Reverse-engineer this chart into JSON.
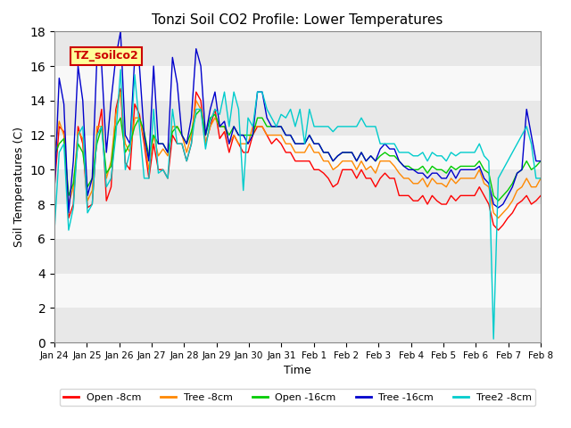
{
  "title": "Tonzi Soil CO2 Profile: Lower Temperatures",
  "xlabel": "Time",
  "ylabel": "Soil Temperatures (C)",
  "ylim": [
    0,
    18
  ],
  "yticks": [
    0,
    2,
    4,
    6,
    8,
    10,
    12,
    14,
    16,
    18
  ],
  "label_box_text": "TZ_soilco2",
  "label_box_color": "#ffff99",
  "label_box_border": "#cc0000",
  "label_box_text_color": "#cc0000",
  "series": [
    {
      "name": "Open -8cm",
      "color": "#ff0000"
    },
    {
      "name": "Tree -8cm",
      "color": "#ff8800"
    },
    {
      "name": "Open -16cm",
      "color": "#00cc00"
    },
    {
      "name": "Tree -16cm",
      "color": "#0000cc"
    },
    {
      "name": "Tree2 -8cm",
      "color": "#00cccc"
    }
  ],
  "x_tick_labels": [
    "Jan 24",
    "Jan 25",
    "Jan 26",
    "Jan 27",
    "Jan 28",
    "Jan 29",
    "Jan 30",
    "Jan 31",
    "Feb 1",
    "Feb 2",
    "Feb 3",
    "Feb 4",
    "Feb 5",
    "Feb 6",
    "Feb 7",
    "Feb 8"
  ],
  "band_colors": [
    "#e8e8e8",
    "#f8f8f8"
  ],
  "band_edges": [
    0,
    2,
    4,
    6,
    8,
    10,
    12,
    14,
    16,
    18
  ],
  "open8": [
    9.0,
    12.5,
    12.2,
    7.2,
    8.0,
    12.5,
    11.5,
    7.8,
    8.0,
    12.0,
    13.5,
    8.2,
    9.0,
    13.5,
    14.7,
    10.4,
    10.0,
    13.8,
    13.2,
    11.5,
    9.5,
    11.5,
    10.0,
    10.0,
    9.5,
    12.0,
    11.5,
    11.5,
    10.5,
    11.5,
    14.5,
    14.0,
    11.5,
    12.5,
    13.5,
    11.8,
    12.2,
    11.0,
    12.0,
    11.5,
    11.0,
    11.0,
    12.0,
    12.5,
    12.5,
    12.0,
    11.5,
    11.8,
    11.5,
    11.0,
    11.0,
    10.5,
    10.5,
    10.5,
    10.5,
    10.0,
    10.0,
    9.8,
    9.5,
    9.0,
    9.2,
    10.0,
    10.0,
    10.0,
    9.5,
    10.0,
    9.5,
    9.5,
    9.0,
    9.5,
    9.8,
    9.5,
    9.5,
    8.5,
    8.5,
    8.5,
    8.2,
    8.2,
    8.5,
    8.0,
    8.5,
    8.2,
    8.0,
    8.0,
    8.5,
    8.2,
    8.5,
    8.5,
    8.5,
    8.5,
    9.0,
    8.5,
    8.0,
    6.8,
    6.5,
    6.8,
    7.2,
    7.5,
    8.0,
    8.2,
    8.5,
    8.0,
    8.2,
    8.5
  ],
  "tree8": [
    11.0,
    12.8,
    12.0,
    8.0,
    9.0,
    12.2,
    11.8,
    8.2,
    8.8,
    12.5,
    12.5,
    9.5,
    10.5,
    13.2,
    14.5,
    11.5,
    11.0,
    13.0,
    13.0,
    11.8,
    10.0,
    12.0,
    10.8,
    11.2,
    10.8,
    12.5,
    12.5,
    12.0,
    11.0,
    12.0,
    14.0,
    13.5,
    11.5,
    12.5,
    13.0,
    12.5,
    12.5,
    11.5,
    12.0,
    11.5,
    11.5,
    11.5,
    12.5,
    12.5,
    12.5,
    12.0,
    12.0,
    12.0,
    12.0,
    11.5,
    11.5,
    11.0,
    11.0,
    11.0,
    11.5,
    11.0,
    11.0,
    10.5,
    10.5,
    10.0,
    10.2,
    10.5,
    10.5,
    10.5,
    10.0,
    10.5,
    10.0,
    10.2,
    9.8,
    10.5,
    10.5,
    10.5,
    10.2,
    9.8,
    9.5,
    9.5,
    9.2,
    9.2,
    9.5,
    9.0,
    9.5,
    9.2,
    9.2,
    9.0,
    9.5,
    9.2,
    9.5,
    9.5,
    9.5,
    9.5,
    10.0,
    9.2,
    9.0,
    7.5,
    7.2,
    7.5,
    7.8,
    8.2,
    8.8,
    9.0,
    9.5,
    9.0,
    9.0,
    9.5
  ],
  "open16": [
    10.8,
    11.5,
    11.8,
    8.5,
    9.2,
    11.5,
    11.0,
    9.0,
    9.5,
    11.5,
    12.5,
    9.8,
    10.2,
    12.5,
    13.0,
    11.0,
    11.5,
    12.5,
    13.0,
    12.2,
    10.8,
    12.0,
    11.5,
    11.5,
    11.0,
    12.2,
    12.5,
    12.0,
    11.5,
    12.2,
    13.2,
    13.5,
    12.0,
    13.0,
    13.2,
    12.5,
    12.5,
    12.0,
    12.5,
    12.0,
    12.0,
    12.0,
    12.0,
    13.0,
    13.0,
    12.5,
    12.5,
    12.5,
    12.5,
    12.0,
    12.0,
    11.5,
    11.5,
    11.5,
    12.0,
    11.5,
    11.5,
    11.0,
    11.0,
    10.5,
    10.8,
    11.0,
    11.0,
    11.0,
    10.5,
    11.0,
    10.5,
    10.8,
    10.5,
    10.8,
    11.0,
    10.8,
    10.8,
    10.5,
    10.2,
    10.2,
    10.0,
    10.0,
    10.2,
    9.8,
    10.2,
    10.0,
    10.0,
    9.8,
    10.2,
    10.0,
    10.2,
    10.2,
    10.2,
    10.2,
    10.5,
    10.0,
    9.8,
    8.5,
    8.2,
    8.5,
    8.8,
    9.2,
    9.8,
    10.0,
    10.5,
    10.0,
    10.2,
    10.5
  ],
  "tree16": [
    8.8,
    15.3,
    13.8,
    7.5,
    10.5,
    16.0,
    14.0,
    8.5,
    9.5,
    16.5,
    16.0,
    11.0,
    14.0,
    16.5,
    18.0,
    12.0,
    11.5,
    16.5,
    16.0,
    12.0,
    10.5,
    16.0,
    11.5,
    11.5,
    11.0,
    16.5,
    15.0,
    12.0,
    11.5,
    13.0,
    17.0,
    16.0,
    12.0,
    13.5,
    14.5,
    12.5,
    12.8,
    11.5,
    12.5,
    12.0,
    12.0,
    11.5,
    12.0,
    14.5,
    14.5,
    13.0,
    12.5,
    12.5,
    12.5,
    12.0,
    12.0,
    11.5,
    11.5,
    11.5,
    12.0,
    11.5,
    11.5,
    11.0,
    11.0,
    10.5,
    10.8,
    11.0,
    11.0,
    11.0,
    10.5,
    11.0,
    10.5,
    10.8,
    10.5,
    11.2,
    11.5,
    11.2,
    11.2,
    10.5,
    10.2,
    10.0,
    10.0,
    9.8,
    9.8,
    9.5,
    9.8,
    9.8,
    9.5,
    9.5,
    10.0,
    9.5,
    10.0,
    10.0,
    10.0,
    10.0,
    10.2,
    9.5,
    9.2,
    8.0,
    7.8,
    8.0,
    8.5,
    9.0,
    9.8,
    10.0,
    13.5,
    12.0,
    10.5,
    10.5
  ],
  "tree2_8": [
    6.5,
    11.0,
    11.5,
    6.5,
    7.8,
    12.0,
    12.5,
    7.5,
    8.0,
    12.0,
    12.5,
    9.0,
    9.5,
    12.0,
    15.8,
    10.0,
    11.0,
    15.5,
    12.5,
    9.5,
    9.5,
    13.5,
    9.8,
    10.0,
    9.5,
    13.5,
    11.5,
    11.5,
    10.5,
    11.5,
    13.5,
    13.5,
    11.2,
    12.8,
    13.5,
    13.2,
    14.5,
    12.5,
    14.5,
    13.5,
    8.8,
    13.0,
    12.5,
    14.5,
    14.5,
    13.5,
    13.0,
    12.5,
    13.2,
    13.0,
    13.5,
    12.5,
    13.5,
    11.5,
    13.5,
    12.5,
    12.5,
    12.5,
    12.5,
    12.2,
    12.5,
    12.5,
    12.5,
    12.5,
    12.5,
    13.0,
    12.5,
    12.5,
    12.5,
    11.5,
    11.5,
    11.5,
    11.5,
    11.0,
    11.0,
    11.0,
    10.8,
    10.8,
    11.0,
    10.5,
    11.0,
    10.8,
    10.8,
    10.5,
    11.0,
    10.8,
    11.0,
    11.0,
    11.0,
    11.0,
    11.5,
    10.8,
    10.5,
    0.2,
    9.5,
    10.0,
    10.5,
    11.0,
    11.5,
    12.0,
    12.5,
    11.5,
    9.5,
    9.5
  ]
}
